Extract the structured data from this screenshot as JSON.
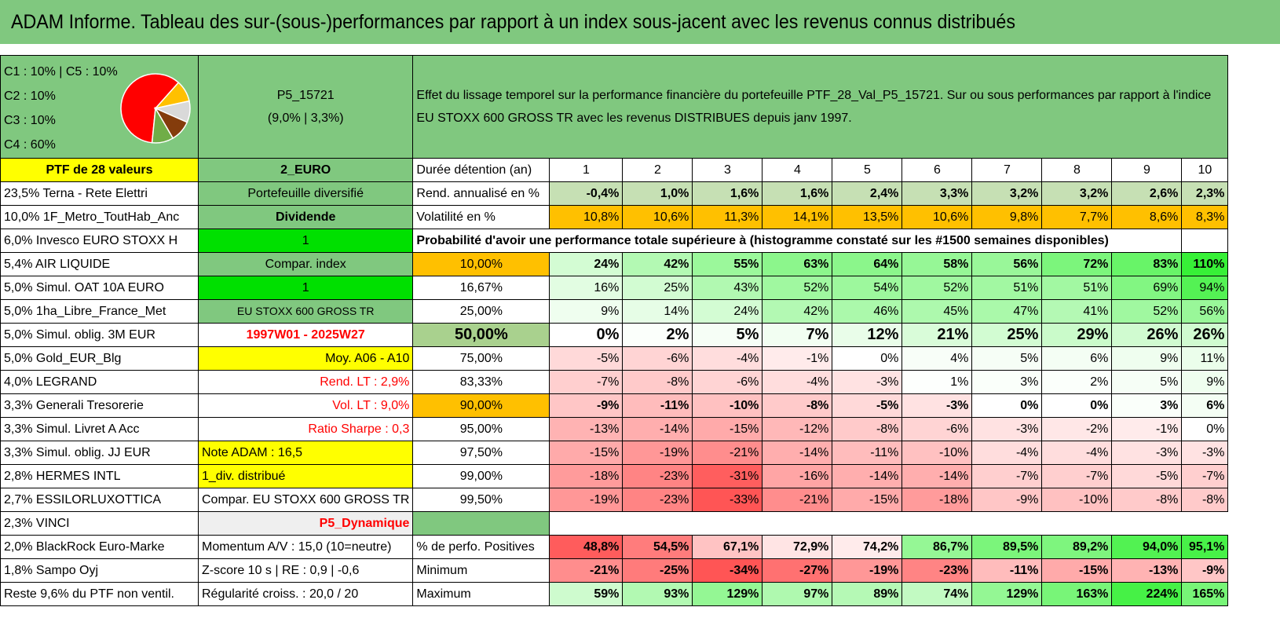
{
  "header": {
    "title": "ADAM Informe. Tableau des sur-(sous-)performances par rapport à un index sous-jacent avec les revenus connus distribués"
  },
  "top": {
    "legend": [
      "C1 : 10% | C5 : 10%",
      "C2 : 10%",
      "C3 : 10%",
      "C4 : 60%"
    ],
    "pie": {
      "slices": [
        {
          "label": "C4",
          "value": 60,
          "color": "#ff0000"
        },
        {
          "label": "C1",
          "value": 10,
          "color": "#ffc000"
        },
        {
          "label": "C5",
          "value": 10,
          "color": "#d9d9d9"
        },
        {
          "label": "C2",
          "value": 10,
          "color": "#843c0c"
        },
        {
          "label": "C3",
          "value": 10,
          "color": "#70ad47"
        }
      ]
    },
    "ptf_code": "P5_15721",
    "ptf_stats": "(9,0% | 3,3%)",
    "description": "Effet du lissage temporel sur la performance financière du portefeuille PTF_28_Val_P5_15721. Sur ou sous performances par rapport à l'indice EU STOXX 600 GROSS TR avec les revenus DISTRIBUES depuis janv 1997."
  },
  "colA": [
    "PTF de 28 valeurs",
    "23,5% Terna - Rete Elettri",
    "10,0% 1F_Metro_ToutHab_Anc",
    "6,0% Invesco EURO STOXX H",
    "5,4% AIR LIQUIDE",
    "5,0% Simul. OAT 10A EURO",
    "5,0% 1ha_Libre_France_Met",
    "5,0% Simul. oblig. 3M EUR",
    "5,0% Gold_EUR_Blg",
    "4,0% LEGRAND",
    "3,3% Generali Tresorerie",
    "3,3% Simul. Livret A Acc",
    "3,3% Simul. oblig. JJ EUR",
    "2,8% HERMES INTL",
    "2,7% ESSILORLUXOTTICA",
    "2,3% VINCI",
    "2,0% BlackRock Euro-Marke",
    "1,8% Sampo Oyj",
    "Reste 9,6% du PTF non ventil."
  ],
  "colB": [
    "2_EURO",
    "Portefeuille diversifié",
    "Dividende",
    "1",
    "Compar. index",
    "1",
    "EU STOXX 600 GROSS TR",
    "1997W01 - 2025W27",
    "Moy. A06 - A10",
    "Rend. LT : 2,9%",
    "Vol. LT : 9,0%",
    "Ratio Sharpe : 0,3",
    "Note ADAM : 16,5",
    "1_div. distribué",
    "Compar. EU STOXX 600 GROSS TR",
    "P5_Dynamique",
    "Momentum A/V : 15,0 (10=neutre)",
    "Z-score 10 s | RE : 0,9 | -0,6",
    "Régularité croiss. : 20,0 / 20"
  ],
  "durations": {
    "label": "Durée détention (an)",
    "values": [
      "1",
      "2",
      "3",
      "4",
      "5",
      "6",
      "7",
      "8",
      "9",
      "10"
    ]
  },
  "rend": {
    "label": "Rend. annualisé en %",
    "values": [
      "-0,4%",
      "1,0%",
      "1,6%",
      "1,6%",
      "2,4%",
      "3,3%",
      "3,2%",
      "3,2%",
      "2,6%",
      "2,3%"
    ]
  },
  "vol": {
    "label": "Volatilité en %",
    "values": [
      "10,8%",
      "10,6%",
      "11,3%",
      "14,1%",
      "13,5%",
      "10,6%",
      "9,8%",
      "7,7%",
      "8,6%",
      "8,3%"
    ]
  },
  "proba_title": "Probabilité d'avoir une performance totale supérieure à (histogramme constaté sur les #1500 semaines disponibles)",
  "quantiles": [
    {
      "q": "10,00%",
      "v": [
        "24%",
        "42%",
        "55%",
        "63%",
        "64%",
        "58%",
        "56%",
        "72%",
        "83%",
        "110%"
      ]
    },
    {
      "q": "16,67%",
      "v": [
        "16%",
        "25%",
        "43%",
        "52%",
        "54%",
        "52%",
        "51%",
        "51%",
        "69%",
        "94%"
      ]
    },
    {
      "q": "25,00%",
      "v": [
        "9%",
        "14%",
        "24%",
        "42%",
        "46%",
        "45%",
        "47%",
        "41%",
        "52%",
        "56%"
      ]
    },
    {
      "q": "50,00%",
      "v": [
        "0%",
        "2%",
        "5%",
        "7%",
        "12%",
        "21%",
        "25%",
        "29%",
        "26%",
        "26%"
      ]
    },
    {
      "q": "75,00%",
      "v": [
        "-5%",
        "-6%",
        "-4%",
        "-1%",
        "0%",
        "4%",
        "5%",
        "6%",
        "9%",
        "11%"
      ]
    },
    {
      "q": "83,33%",
      "v": [
        "-7%",
        "-8%",
        "-6%",
        "-4%",
        "-3%",
        "1%",
        "3%",
        "2%",
        "5%",
        "9%"
      ]
    },
    {
      "q": "90,00%",
      "v": [
        "-9%",
        "-11%",
        "-10%",
        "-8%",
        "-5%",
        "-3%",
        "0%",
        "0%",
        "3%",
        "6%"
      ]
    },
    {
      "q": "95,00%",
      "v": [
        "-13%",
        "-14%",
        "-15%",
        "-12%",
        "-8%",
        "-6%",
        "-3%",
        "-2%",
        "-1%",
        "0%"
      ]
    },
    {
      "q": "97,50%",
      "v": [
        "-15%",
        "-19%",
        "-21%",
        "-14%",
        "-11%",
        "-10%",
        "-4%",
        "-4%",
        "-3%",
        "-3%"
      ]
    },
    {
      "q": "99,00%",
      "v": [
        "-18%",
        "-23%",
        "-31%",
        "-16%",
        "-14%",
        "-14%",
        "-7%",
        "-7%",
        "-5%",
        "-7%"
      ]
    },
    {
      "q": "99,50%",
      "v": [
        "-19%",
        "-23%",
        "-33%",
        "-21%",
        "-15%",
        "-18%",
        "-9%",
        "-10%",
        "-8%",
        "-8%"
      ]
    }
  ],
  "positives": {
    "label": "% de perfo. Positives",
    "values": [
      "48,8%",
      "54,5%",
      "67,1%",
      "72,9%",
      "74,2%",
      "86,7%",
      "89,5%",
      "89,2%",
      "94,0%",
      "95,1%"
    ]
  },
  "minimum": {
    "label": "Minimum",
    "values": [
      "-21%",
      "-25%",
      "-34%",
      "-27%",
      "-19%",
      "-23%",
      "-11%",
      "-15%",
      "-13%",
      "-9%"
    ]
  },
  "maximum": {
    "label": "Maximum",
    "values": [
      "59%",
      "93%",
      "129%",
      "97%",
      "89%",
      "74%",
      "129%",
      "163%",
      "224%",
      "165%"
    ]
  }
}
